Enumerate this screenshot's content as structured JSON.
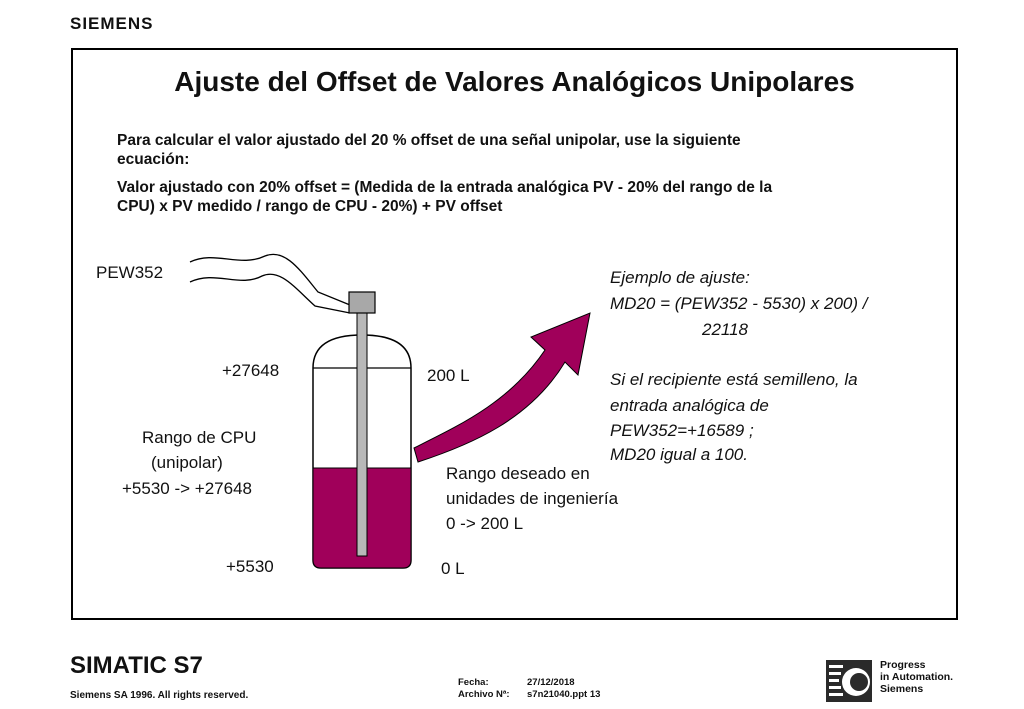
{
  "header": {
    "brand": "SIEMENS"
  },
  "slide": {
    "title": "Ajuste del Offset de Valores Analógicos Unipolares",
    "intro_line1": "Para calcular el valor ajustado del 20 % offset de una señal unipolar, use la siguiente",
    "intro_line2": "ecuación:",
    "formula_line1": "Valor ajustado con 20% offset = (Medida de la entrada analógica PV - 20% del rango de la",
    "formula_line2": "CPU) x PV medido / rango de CPU - 20%) + PV offset"
  },
  "diagram": {
    "sensor_label": "PEW352",
    "top_value": "+27648",
    "bottom_value": "+5530",
    "cpu_range_line1": "Rango de CPU",
    "cpu_range_line2": "(unipolar)",
    "cpu_range_line3": "+5530 -> +27648",
    "top_liters": "200 L",
    "bottom_liters": "0 L",
    "eng_range_line1": "Rango deseado en",
    "eng_range_line2": "unidades de ingeniería",
    "eng_range_line3": "0 -> 200 L",
    "fill_fraction": 0.5,
    "liquid_color": "#a0005a",
    "arrow_color": "#a0005a"
  },
  "example": {
    "line1": "Ejemplo de ajuste:",
    "line2": "MD20 = (PEW352 - 5530) x 200) /",
    "line3": "22118",
    "line4": "Si el recipiente está semilleno, la",
    "line5": "entrada analógica de",
    "line6": "PEW352=+16589 ;",
    "line7": "MD20 igual a 100."
  },
  "footer": {
    "product": "SIMATIC S7",
    "rights": "Siemens SA 1996. All rights reserved.",
    "date_label": "Fecha:",
    "date_value": "27/12/2018",
    "file_label": "Archivo Nª:",
    "file_value": "s7n21040.ppt 13",
    "slogan_line1": "Progress",
    "slogan_line2": "in Automation.",
    "slogan_line3": "Siemens",
    "logo_icon": "progress-logo-icon"
  }
}
